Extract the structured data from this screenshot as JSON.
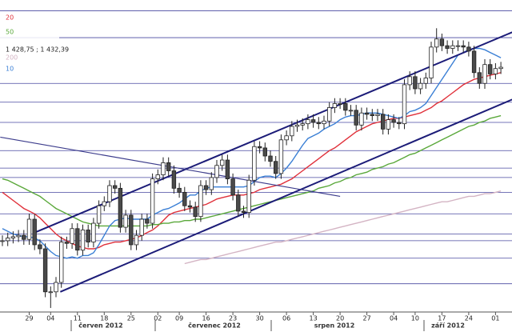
{
  "chart_data": {
    "type": "candlestick",
    "ylim": [
      1263,
      1495
    ],
    "categories": [
      null,
      null,
      null,
      null,
      null,
      "29",
      null,
      null,
      null,
      "04",
      null,
      null,
      null,
      null,
      "11",
      null,
      null,
      null,
      null,
      "18",
      null,
      null,
      null,
      null,
      "25",
      null,
      null,
      null,
      null,
      "02",
      null,
      null,
      null,
      "09",
      null,
      null,
      null,
      null,
      "16",
      null,
      null,
      null,
      null,
      "23",
      null,
      null,
      null,
      null,
      "30",
      null,
      null,
      null,
      null,
      "06",
      null,
      null,
      null,
      null,
      "13",
      null,
      null,
      null,
      null,
      "20",
      null,
      null,
      null,
      null,
      "27",
      null,
      null,
      null,
      null,
      "04",
      null,
      null,
      null,
      "10",
      null,
      null,
      null,
      null,
      "17",
      null,
      null,
      null,
      null,
      "24",
      null,
      null,
      null,
      null,
      "01",
      null
    ],
    "months": [
      "červen 2012",
      "červenec 2012",
      "srpen 2012",
      "září 2012"
    ],
    "open": [
      1316,
      1316,
      1318,
      1319,
      1320,
      1317,
      1332,
      1313,
      1310,
      1278,
      1278,
      1285,
      1315,
      1314,
      1325,
      1309,
      1324,
      1315,
      1329,
      1342,
      1345,
      1357,
      1355,
      1326,
      1335,
      1313,
      1320,
      1332,
      1329,
      1362,
      1365,
      1374,
      1368,
      1355,
      1352,
      1342,
      1341,
      1334,
      1357,
      1354,
      1363,
      1372,
      1376,
      1362,
      1350,
      1338,
      1337,
      1361,
      1386,
      1385,
      1379,
      1375,
      1366,
      1391,
      1394,
      1401,
      1402,
      1403,
      1406,
      1404,
      1403,
      1405,
      1415,
      1418,
      1418,
      1413,
      1413,
      1402,
      1411,
      1410,
      1409,
      1410,
      1399,
      1406,
      1404,
      1403,
      1432,
      1438,
      1429,
      1433,
      1437,
      1460,
      1466,
      1461,
      1459,
      1461,
      1461,
      1460,
      1457,
      1441,
      1433,
      1447,
      1440,
      1444
    ],
    "high": [
      1320,
      1322,
      1323,
      1324,
      1324,
      1336,
      1336,
      1317,
      1314,
      1282,
      1289,
      1319,
      1319,
      1329,
      1329,
      1328,
      1328,
      1333,
      1346,
      1349,
      1361,
      1361,
      1359,
      1339,
      1339,
      1324,
      1336,
      1336,
      1366,
      1369,
      1378,
      1378,
      1372,
      1359,
      1356,
      1346,
      1345,
      1361,
      1361,
      1367,
      1376,
      1380,
      1380,
      1366,
      1354,
      1342,
      1365,
      1390,
      1390,
      1389,
      1383,
      1379,
      1395,
      1398,
      1405,
      1406,
      1407,
      1410,
      1410,
      1408,
      1409,
      1419,
      1422,
      1422,
      1422,
      1417,
      1417,
      1415,
      1415,
      1414,
      1414,
      1414,
      1410,
      1410,
      1408,
      1436,
      1442,
      1442,
      1437,
      1441,
      1464,
      1474,
      1470,
      1465,
      1465,
      1465,
      1465,
      1464,
      1461,
      1445,
      1451,
      1451,
      1448,
      1449
    ],
    "low": [
      1312,
      1312,
      1314,
      1315,
      1313,
      1313,
      1309,
      1306,
      1274,
      1266,
      1274,
      1281,
      1310,
      1310,
      1305,
      1305,
      1311,
      1311,
      1325,
      1338,
      1341,
      1351,
      1322,
      1322,
      1309,
      1309,
      1316,
      1325,
      1325,
      1358,
      1361,
      1364,
      1351,
      1348,
      1338,
      1337,
      1330,
      1330,
      1350,
      1350,
      1359,
      1368,
      1358,
      1346,
      1334,
      1333,
      1333,
      1357,
      1381,
      1375,
      1371,
      1362,
      1362,
      1387,
      1390,
      1397,
      1398,
      1399,
      1400,
      1399,
      1399,
      1401,
      1411,
      1414,
      1409,
      1409,
      1398,
      1398,
      1406,
      1405,
      1405,
      1395,
      1395,
      1400,
      1399,
      1399,
      1428,
      1425,
      1425,
      1429,
      1433,
      1456,
      1457,
      1455,
      1455,
      1457,
      1456,
      1453,
      1437,
      1429,
      1429,
      1436,
      1436,
      1440
    ],
    "close": [
      1316,
      1318,
      1319,
      1320,
      1317,
      1332,
      1313,
      1310,
      1278,
      1278,
      1285,
      1315,
      1314,
      1325,
      1309,
      1324,
      1315,
      1329,
      1342,
      1345,
      1357,
      1355,
      1326,
      1335,
      1313,
      1320,
      1332,
      1329,
      1362,
      1365,
      1374,
      1368,
      1355,
      1352,
      1342,
      1341,
      1334,
      1357,
      1354,
      1363,
      1372,
      1376,
      1362,
      1350,
      1338,
      1337,
      1361,
      1386,
      1385,
      1379,
      1375,
      1366,
      1391,
      1394,
      1401,
      1402,
      1403,
      1406,
      1404,
      1403,
      1405,
      1415,
      1418,
      1418,
      1413,
      1413,
      1402,
      1411,
      1410,
      1409,
      1410,
      1399,
      1406,
      1404,
      1403,
      1432,
      1438,
      1429,
      1433,
      1437,
      1460,
      1466,
      1461,
      1459,
      1461,
      1461,
      1460,
      1457,
      1441,
      1433,
      1447,
      1440,
      1444,
      1445
    ],
    "series": [
      {
        "name": "20",
        "color": "#e0303a",
        "values": [
          1352,
          1349,
          1346,
          1343,
          1340,
          1338,
          1336,
          1333,
          1329,
          1325,
          1321,
          1318,
          1316,
          1314,
          1312,
          1311,
          1310,
          1310,
          1311,
          1313,
          1314,
          1315,
          1315,
          1316,
          1317,
          1318,
          1320,
          1322,
          1324,
          1327,
          1331,
          1335,
          1337,
          1338,
          1339,
          1340,
          1341,
          1342,
          1343,
          1345,
          1347,
          1348,
          1349,
          1350,
          1350,
          1350,
          1351,
          1352,
          1354,
          1355,
          1356,
          1357,
          1358,
          1360,
          1362,
          1365,
          1368,
          1371,
          1374,
          1377,
          1380,
          1383,
          1385,
          1388,
          1391,
          1394,
          1397,
          1399,
          1401,
          1403,
          1404,
          1405,
          1406,
          1407,
          1407,
          1408,
          1409,
          1410,
          1411,
          1413,
          1415,
          1418,
          1420,
          1423,
          1426,
          1429,
          1432,
          1434,
          1436,
          1437,
          1438,
          1439,
          1440,
          1441
        ]
      },
      {
        "name": "50",
        "color": "#5aa83a",
        "values": [
          1362,
          1361,
          1359,
          1357,
          1355,
          1353,
          1351,
          1349,
          1346,
          1343,
          1340,
          1338,
          1336,
          1334,
          1332,
          1330,
          1329,
          1328,
          1327,
          1327,
          1327,
          1327,
          1327,
          1327,
          1327,
          1327,
          1327,
          1327,
          1328,
          1328,
          1329,
          1329,
          1330,
          1330,
          1331,
          1331,
          1332,
          1332,
          1333,
          1334,
          1335,
          1336,
          1337,
          1338,
          1339,
          1340,
          1341,
          1342,
          1343,
          1344,
          1345,
          1346,
          1347,
          1348,
          1349,
          1350,
          1351,
          1352,
          1353,
          1355,
          1356,
          1357,
          1359,
          1360,
          1362,
          1363,
          1365,
          1366,
          1367,
          1369,
          1370,
          1371,
          1373,
          1374,
          1376,
          1378,
          1380,
          1381,
          1383,
          1385,
          1387,
          1389,
          1391,
          1393,
          1395,
          1397,
          1399,
          1401,
          1402,
          1404,
          1405,
          1407,
          1408,
          1409
        ]
      },
      {
        "name": "200",
        "color": "#d4b4c4",
        "values": [
          null,
          null,
          null,
          null,
          null,
          null,
          null,
          null,
          null,
          null,
          null,
          null,
          null,
          null,
          null,
          null,
          null,
          null,
          null,
          null,
          null,
          null,
          null,
          null,
          null,
          null,
          null,
          null,
          null,
          null,
          null,
          null,
          null,
          null,
          1299,
          1300,
          1301,
          1302,
          1302,
          1303,
          1304,
          1305,
          1306,
          1307,
          1308,
          1309,
          1310,
          1311,
          1312,
          1313,
          1314,
          1315,
          1315,
          1316,
          1317,
          1318,
          1319,
          1320,
          1321,
          1322,
          1323,
          1324,
          1325,
          1326,
          1327,
          1328,
          1329,
          1330,
          1331,
          1332,
          1333,
          1334,
          1335,
          1336,
          1337,
          1338,
          1339,
          1340,
          1341,
          1342,
          1343,
          1344,
          1345,
          1345,
          1346,
          1347,
          1348,
          1349,
          1349,
          1350,
          1351,
          1351,
          1352,
          1353
        ]
      },
      {
        "name": "10",
        "color": "#3a7fd5",
        "values": [
          1325,
          1323,
          1321,
          1320,
          1319,
          1319,
          1318,
          1316,
          1312,
          1308,
          1305,
          1304,
          1303,
          1304,
          1303,
          1305,
          1305,
          1307,
          1313,
          1320,
          1327,
          1331,
          1332,
          1333,
          1332,
          1332,
          1332,
          1332,
          1335,
          1337,
          1339,
          1340,
          1342,
          1344,
          1347,
          1350,
          1350,
          1353,
          1355,
          1356,
          1356,
          1356,
          1356,
          1356,
          1356,
          1356,
          1357,
          1360,
          1363,
          1364,
          1364,
          1363,
          1366,
          1370,
          1375,
          1381,
          1387,
          1392,
          1394,
          1396,
          1399,
          1401,
          1403,
          1406,
          1408,
          1409,
          1409,
          1410,
          1411,
          1411,
          1411,
          1410,
          1409,
          1408,
          1407,
          1409,
          1412,
          1413,
          1415,
          1418,
          1424,
          1430,
          1436,
          1442,
          1448,
          1454,
          1456,
          1458,
          1459,
          1459,
          1458,
          1456,
          1454,
          1452
        ]
      }
    ],
    "annotation": "1 428,75 ; 1 432,39",
    "levels": [
      1487,
      1467,
      1433,
      1419,
      1404,
      1383,
      1370,
      1363,
      1352,
      1336,
      1321,
      1316,
      1303,
      1284
    ],
    "trendlines": [
      {
        "x": [
          6.3,
          95.1
        ],
        "y": [
          1322.5,
          1471
        ],
        "color": "#1c1c78"
      },
      {
        "x": [
          10.8,
          95.1
        ],
        "y": [
          1278,
          1421
        ],
        "color": "#1c1c78"
      },
      {
        "x": [
          -0.4,
          63
        ],
        "y": [
          1393,
          1349
        ],
        "color": "#3c3c8c"
      }
    ]
  }
}
